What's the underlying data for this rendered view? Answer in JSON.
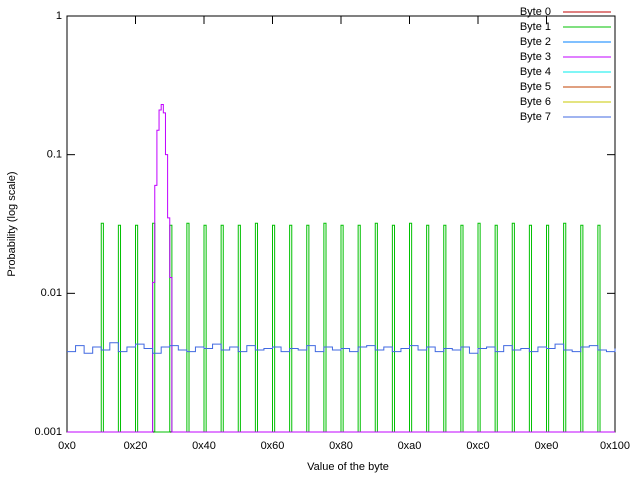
{
  "chart_data": {
    "type": "step",
    "xlabel": "Value of the byte",
    "ylabel": "Probability (log scale)",
    "xlim": [
      0,
      256
    ],
    "xticks": [
      {
        "value": 0,
        "label": "0x0"
      },
      {
        "value": 32,
        "label": "0x20"
      },
      {
        "value": 64,
        "label": "0x40"
      },
      {
        "value": 96,
        "label": "0x60"
      },
      {
        "value": 128,
        "label": "0x80"
      },
      {
        "value": 160,
        "label": "0xa0"
      },
      {
        "value": 192,
        "label": "0xc0"
      },
      {
        "value": 224,
        "label": "0xe0"
      },
      {
        "value": 256,
        "label": "0x100"
      }
    ],
    "ylim": [
      0.001,
      1
    ],
    "yticks": [
      0.001,
      0.01,
      0.1,
      1
    ],
    "log_y": true,
    "legend": "top-right",
    "series": [
      {
        "name": "Byte 0",
        "color": "#c00000",
        "x": [],
        "values": []
      },
      {
        "name": "Byte 1",
        "color": "#00c000",
        "x": [
          0,
          16,
          17,
          24,
          25,
          32,
          33,
          40,
          41,
          48,
          49,
          56,
          57,
          64,
          65,
          72,
          73,
          80,
          81,
          88,
          89,
          96,
          97,
          104,
          105,
          112,
          113,
          120,
          121,
          128,
          129,
          136,
          137,
          144,
          145,
          152,
          153,
          160,
          161,
          168,
          169,
          176,
          177,
          184,
          185,
          192,
          193,
          200,
          201,
          208,
          209,
          216,
          217,
          224,
          225,
          232,
          233,
          240,
          241,
          248,
          249,
          256
        ],
        "values": [
          0,
          0.032,
          0,
          0.031,
          0,
          0.031,
          0,
          0.032,
          0,
          0.031,
          0,
          0.032,
          0,
          0.031,
          0,
          0.031,
          0,
          0.031,
          0,
          0.032,
          0,
          0.031,
          0,
          0.031,
          0,
          0.031,
          0,
          0.032,
          0,
          0.031,
          0,
          0.031,
          0,
          0.032,
          0,
          0.031,
          0,
          0.032,
          0,
          0.031,
          0,
          0.031,
          0,
          0.031,
          0,
          0.032,
          0,
          0.031,
          0,
          0.032,
          0,
          0.031,
          0,
          0.031,
          0,
          0.032,
          0,
          0.031,
          0,
          0.031,
          0,
          0
        ]
      },
      {
        "name": "Byte 2",
        "color": "#0080ff",
        "x": [],
        "values": []
      },
      {
        "name": "Byte 3",
        "color": "#c000ff",
        "x": [
          0,
          40,
          41,
          42,
          43,
          44,
          45,
          46,
          47,
          48,
          49,
          256
        ],
        "values": [
          0,
          0.012,
          0.06,
          0.15,
          0.21,
          0.23,
          0.2,
          0.1,
          0.035,
          0.013,
          0,
          0
        ]
      },
      {
        "name": "Byte 4",
        "color": "#00eeee",
        "x": [],
        "values": []
      },
      {
        "name": "Byte 5",
        "color": "#c04000",
        "x": [],
        "values": []
      },
      {
        "name": "Byte 6",
        "color": "#c8c800",
        "x": [],
        "values": []
      },
      {
        "name": "Byte 7",
        "color": "#4169e1",
        "x": [
          0,
          4,
          8,
          12,
          16,
          20,
          24,
          28,
          32,
          36,
          40,
          44,
          48,
          52,
          56,
          60,
          64,
          68,
          72,
          76,
          80,
          84,
          88,
          92,
          96,
          100,
          104,
          108,
          112,
          116,
          120,
          124,
          128,
          132,
          136,
          140,
          144,
          148,
          152,
          156,
          160,
          164,
          168,
          172,
          176,
          180,
          184,
          188,
          192,
          196,
          200,
          204,
          208,
          212,
          216,
          220,
          224,
          228,
          232,
          236,
          240,
          244,
          248,
          252,
          256
        ],
        "values": [
          0.0038,
          0.0042,
          0.0037,
          0.0041,
          0.0039,
          0.0044,
          0.0038,
          0.0041,
          0.0043,
          0.004,
          0.0037,
          0.0041,
          0.0042,
          0.0039,
          0.0038,
          0.0041,
          0.004,
          0.0043,
          0.0039,
          0.0041,
          0.0038,
          0.0042,
          0.0039,
          0.004,
          0.0041,
          0.0038,
          0.004,
          0.0039,
          0.0042,
          0.0038,
          0.0041,
          0.0039,
          0.004,
          0.0038,
          0.0041,
          0.0042,
          0.0039,
          0.0041,
          0.0038,
          0.004,
          0.0042,
          0.0039,
          0.0041,
          0.0038,
          0.004,
          0.0039,
          0.0041,
          0.0037,
          0.004,
          0.0041,
          0.0038,
          0.0042,
          0.0039,
          0.004,
          0.0038,
          0.0041,
          0.004,
          0.0043,
          0.0039,
          0.0038,
          0.0041,
          0.0042,
          0.0039,
          0.0038,
          0.004
        ]
      }
    ]
  }
}
